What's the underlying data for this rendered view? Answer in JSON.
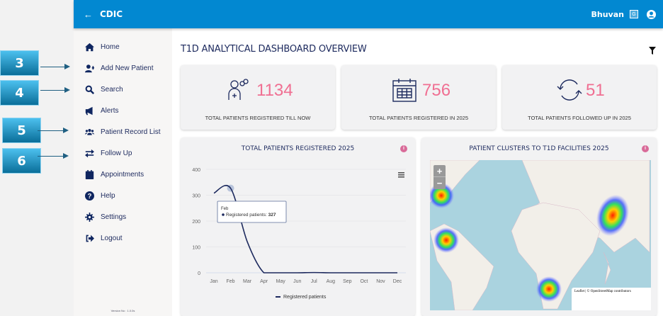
{
  "callouts": [
    "3",
    "4",
    "5",
    "6"
  ],
  "header": {
    "app_title": "CDIC",
    "user": "Bhuvan"
  },
  "sidebar": {
    "items": [
      {
        "label": "Home",
        "icon": "home-icon"
      },
      {
        "label": "Add New Patient",
        "icon": "user-plus-icon"
      },
      {
        "label": "Search",
        "icon": "search-icon"
      },
      {
        "label": "Alerts",
        "icon": "megaphone-icon"
      },
      {
        "label": "Patient Record List",
        "icon": "users-icon"
      },
      {
        "label": "Follow Up",
        "icon": "exchange-icon"
      },
      {
        "label": "Appointments",
        "icon": "calendar-icon"
      },
      {
        "label": "Help",
        "icon": "question-circle-icon"
      },
      {
        "label": "Settings",
        "icon": "gear-icon"
      },
      {
        "label": "Logout",
        "icon": "logout-icon"
      }
    ],
    "version": "Version No : 1.0.0s"
  },
  "main": {
    "title": "T1D ANALYTICAL DASHBOARD OVERVIEW",
    "cards": [
      {
        "value": "1134",
        "label": "TOTAL PATIENTS REGISTERED TILL NOW"
      },
      {
        "value": "756",
        "label": "TOTAL PATIENTS REGISTERED IN 2025"
      },
      {
        "value": "51",
        "label": "TOTAL PATIENTS FOLLOWED UP IN 2025"
      }
    ],
    "map": {
      "title": "PATIENT CLUSTERS TO T1D FACILITIES 2025",
      "zoom_in": "+",
      "zoom_out": "−",
      "attribution": "Leaflet | © OpenStreetMap contributors"
    }
  },
  "colors": {
    "header": "#0288d1",
    "accent": "#f06f92",
    "navy": "#1d2a5e"
  },
  "chart_data": {
    "type": "line",
    "title": "TOTAL PATIENTS REGISTERED 2025",
    "categories": [
      "Jan",
      "Feb",
      "Mar",
      "Apr",
      "May",
      "Jun",
      "Jul",
      "Aug",
      "Sep",
      "Oct",
      "Nov",
      "Dec"
    ],
    "series": [
      {
        "name": "Registered patients",
        "values": [
          308,
          327,
          120,
          0,
          0,
          0,
          1,
          0,
          0,
          0,
          0,
          0
        ]
      }
    ],
    "ylim": [
      0,
      400
    ],
    "yticks": [
      0,
      100,
      200,
      300,
      400
    ],
    "grid": true,
    "legend": "bottom",
    "tooltip": {
      "category": "Feb",
      "label": "Registered patients: ",
      "value": "327"
    }
  }
}
